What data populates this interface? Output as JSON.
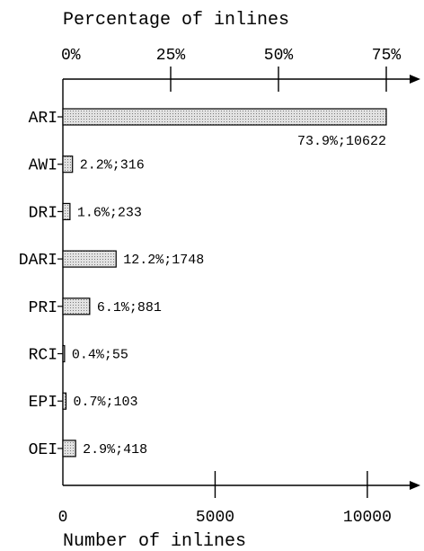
{
  "chart_data": {
    "type": "bar",
    "orientation": "horizontal",
    "title": "",
    "top_axis_label": "Percentage of inlines",
    "bottom_axis_label": "Number of inlines",
    "categories": [
      "ARI",
      "AWI",
      "DRI",
      "DARI",
      "PRI",
      "RCI",
      "EPI",
      "OEI"
    ],
    "percent_values": [
      73.9,
      2.2,
      1.6,
      12.2,
      6.1,
      0.4,
      0.7,
      2.9
    ],
    "count_values": [
      10622,
      316,
      233,
      1748,
      881,
      55,
      103,
      418
    ],
    "data_labels": [
      "73.9%;10622",
      "2.2%;316",
      "1.6%;233",
      "12.2%;1748",
      "6.1%;881",
      "0.4%;55",
      "0.7%;103",
      "2.9%;418"
    ],
    "top_ticks": [
      "0%",
      "25%",
      "50%",
      "75%"
    ],
    "top_tick_values": [
      0,
      25,
      50,
      75
    ],
    "bottom_ticks": [
      "0",
      "5000",
      "10000"
    ],
    "bottom_tick_values": [
      0,
      5000,
      10000
    ],
    "xlim_count": [
      0,
      11000
    ],
    "bar_fill": "#d8d8d8",
    "bar_stroke": "#000000",
    "grid": false
  }
}
